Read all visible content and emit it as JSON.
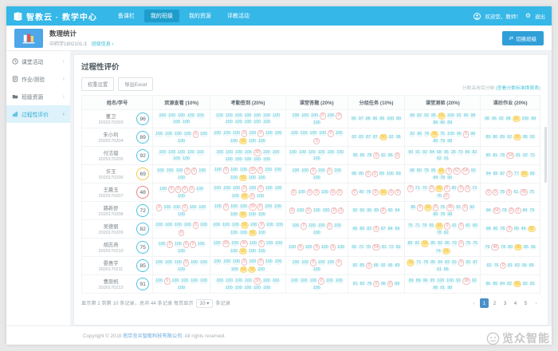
{
  "navbar": {
    "brand": "智教云 · 教学中心",
    "menu": [
      {
        "label": "备课栏",
        "active": false
      },
      {
        "label": "我的班级",
        "active": true
      },
      {
        "label": "我的资源",
        "active": false
      },
      {
        "label": "评教活动",
        "active": false
      }
    ],
    "welcome": "欢迎您，教师！",
    "logout": "退出"
  },
  "course": {
    "title": "数理统计",
    "class_name": "中药学1802101-3",
    "info_link": "班级信息 ›",
    "switch_button": "切换班级"
  },
  "sidebar": {
    "items": [
      {
        "label": "课堂活动",
        "icon": "clock-icon",
        "active": false
      },
      {
        "label": "作业/测验",
        "icon": "file-icon",
        "active": false
      },
      {
        "label": "班级资源",
        "icon": "folder-icon",
        "active": false
      },
      {
        "label": "过程性评价",
        "icon": "chart-icon",
        "active": true
      }
    ]
  },
  "main": {
    "title": "过程性评价",
    "weight_button": "权重设置",
    "export_button": "导出Excel",
    "note": "分数采用百分制",
    "note_link": "(查看分数标准换算表)"
  },
  "table": {
    "columns": [
      "姓名/学号",
      "资源查看 (10%)",
      "考勤签到 (20%)",
      "课堂答题 (20%)",
      "分组任务 (10%)",
      "课堂测验 (20%)",
      "课后作业 (20%)"
    ],
    "chip_colors": {
      "ok": "#56c8d9",
      "zero": "#e89494",
      "warn": "#e8b931"
    },
    "students": [
      {
        "name": "董卫",
        "id": "2020170203",
        "total": "96",
        "level": "good",
        "cells": [
          [
            "100",
            "100",
            "100",
            "100",
            "100",
            "100",
            "100"
          ],
          [
            "100",
            "100",
            "100",
            "100",
            "100",
            "100",
            "100",
            "100",
            "100",
            "100",
            "100",
            "100"
          ],
          [
            "100",
            "100",
            "100",
            "0r",
            "100",
            "0r",
            "100"
          ],
          [
            "96",
            "97",
            "98",
            "96",
            "89",
            "100",
            "89"
          ],
          [
            "98",
            "82",
            "92",
            "95",
            "56y",
            "100",
            "92",
            "96",
            "98",
            "86",
            "86",
            "89"
          ],
          [
            "98",
            "96",
            "92",
            "98",
            "56y",
            "100",
            "89"
          ]
        ]
      },
      {
        "name": "朱小利",
        "id": "2020170204",
        "total": "89",
        "level": "good",
        "cells": [
          [
            "100",
            "100",
            "100",
            "100",
            "0r",
            "100",
            "100"
          ],
          [
            "100",
            "100",
            "100",
            "0r",
            "100",
            "0r",
            "100",
            "100",
            "100",
            "56y",
            "100",
            "100"
          ],
          [
            "100",
            "100",
            "100",
            "100",
            "0r",
            "100",
            "0r"
          ],
          [
            "92",
            "82",
            "87",
            "87",
            "56y",
            "92",
            "96"
          ],
          [
            "92",
            "86",
            "78",
            "56y",
            "75",
            "100",
            "90",
            "0r",
            "98",
            "80",
            "79",
            "98"
          ],
          [
            "89",
            "80",
            "89",
            "92",
            "56y",
            "86",
            "92"
          ]
        ]
      },
      {
        "name": "付洁璇",
        "id": "2020170205",
        "total": "92",
        "level": "good",
        "cells": [
          [
            "100",
            "100",
            "100",
            "100",
            "100",
            "100",
            "100"
          ],
          [
            "100",
            "100",
            "100",
            "100",
            "30r",
            "100",
            "100",
            "100",
            "100",
            "100",
            "100",
            "100"
          ],
          [
            "100",
            "100",
            "100",
            "100",
            "100",
            "100",
            "100"
          ],
          [
            "96",
            "85",
            "78",
            "0r",
            "92",
            "86",
            "0r"
          ],
          [
            "90",
            "91",
            "82",
            "84",
            "68",
            "95",
            "28",
            "70",
            "86",
            "82",
            "92",
            "91"
          ],
          [
            "90",
            "81",
            "78",
            "54r",
            "81",
            "92",
            "72"
          ]
        ]
      },
      {
        "name": "许玉",
        "id": "2020170206",
        "total": "69",
        "level": "warn",
        "cells": [
          [
            "100",
            "100",
            "100",
            "0r",
            "0r",
            "100",
            "100"
          ],
          [
            "100",
            "0r",
            "100",
            "100",
            "30r",
            "0r",
            "100",
            "100",
            "100",
            "56y",
            "100",
            "100"
          ],
          [
            "100",
            "100",
            "0r",
            "100",
            "0r",
            "100",
            "100"
          ],
          [
            "98",
            "80",
            "0r",
            "0r",
            "89",
            "100",
            "89"
          ],
          [
            "98",
            "80",
            "78",
            "95",
            "56y",
            "0r",
            "52r",
            "54r",
            "92",
            "84",
            "78",
            "90"
          ],
          [
            "94",
            "85",
            "87",
            "0r",
            "77",
            "56y",
            "89"
          ]
        ]
      },
      {
        "name": "王晨玉",
        "id": "2020170207",
        "total": "48",
        "level": "bad",
        "cells": [
          [
            "100",
            "0r",
            "0r",
            "0r",
            "0r",
            "100",
            "100"
          ],
          [
            "100",
            "100",
            "100",
            "0r",
            "100",
            "0r",
            "100",
            "100",
            "100",
            "56y",
            "0r",
            "100"
          ],
          [
            "0r",
            "100",
            "0r",
            "0r",
            "100",
            "0r",
            "0r"
          ],
          [
            "0r",
            "80",
            "78",
            "0r",
            "56y",
            "0r",
            "0r"
          ],
          [
            "0r",
            "71",
            "70",
            "0r",
            "56y",
            "0r",
            "80",
            "0r",
            "0r",
            "72",
            "76",
            "0r"
          ],
          [
            "0r",
            "0r",
            "78",
            "0r",
            "61",
            "45r",
            "75"
          ]
        ]
      },
      {
        "name": "路新舒",
        "id": "2020170208",
        "total": "72",
        "level": "good",
        "cells": [
          [
            "0r",
            "100",
            "100",
            "0r",
            "100",
            "100",
            "100"
          ],
          [
            "100",
            "0r",
            "100",
            "100",
            "30r",
            "0r",
            "100",
            "100",
            "100",
            "56y",
            "100",
            "100"
          ],
          [
            "0r",
            "100",
            "0r",
            "100",
            "100",
            "0r",
            "0r"
          ],
          [
            "92",
            "90",
            "96",
            "89",
            "0r",
            "90",
            "94"
          ],
          [
            "86",
            "0r",
            "56y",
            "0r",
            "78",
            "45r",
            "92",
            "0r",
            "90",
            "80",
            "78",
            "98"
          ],
          [
            "84",
            "54r",
            "78",
            "0r",
            "0r",
            "84",
            "79"
          ]
        ]
      },
      {
        "name": "吴德丽",
        "id": "2020170209",
        "total": "82",
        "level": "good",
        "cells": [
          [
            "100",
            "100",
            "100",
            "100",
            "0r",
            "100",
            "0r"
          ],
          [
            "100",
            "100",
            "100",
            "56y",
            "100",
            "0r",
            "100",
            "100",
            "100",
            "100",
            "56y",
            "100"
          ],
          [
            "100",
            "0r",
            "100",
            "100",
            "0r",
            "100",
            "100"
          ],
          [
            "96",
            "80",
            "82",
            "0r",
            "87",
            "84",
            "89"
          ],
          [
            "75",
            "71",
            "78",
            "95",
            "56y",
            "0r",
            "92",
            "0r",
            "81",
            "80",
            "78",
            "82"
          ],
          [
            "98",
            "80",
            "78",
            "0r",
            "89",
            "46",
            "56y"
          ]
        ]
      },
      {
        "name": "胡志燕",
        "id": "2020170210",
        "total": "75",
        "level": "good",
        "cells": [
          [
            "100",
            "0r",
            "100",
            "0r",
            "0r",
            "100",
            "100"
          ],
          [
            "100",
            "30r",
            "100",
            "30r",
            "100",
            "0r",
            "100",
            "100",
            "100",
            "56y",
            "100",
            "100"
          ],
          [
            "100",
            "0r",
            "100",
            "0r",
            "100",
            "0r",
            "100"
          ],
          [
            "90",
            "72",
            "78",
            "54r",
            "81",
            "72",
            "82"
          ],
          [
            "88",
            "92",
            "56y",
            "85",
            "82",
            "86",
            "79",
            "0r",
            "75",
            "76",
            "74",
            "56y"
          ],
          [
            "79",
            "46r",
            "78",
            "80",
            "56y",
            "85",
            "96"
          ]
        ]
      },
      {
        "name": "晏惠宇",
        "id": "2020170211",
        "total": "85",
        "level": "good",
        "cells": [
          [
            "100",
            "100",
            "100",
            "0r",
            "100",
            "100",
            "100"
          ],
          [
            "100",
            "100",
            "100",
            "0r",
            "100",
            "0r",
            "100",
            "100",
            "100",
            "56y",
            "56y",
            "100"
          ],
          [
            "100",
            "100",
            "0r",
            "100",
            "100",
            "0r",
            "100"
          ],
          [
            "92",
            "85",
            "0r",
            "86",
            "92",
            "96",
            "89"
          ],
          [
            "56y",
            "71",
            "78",
            "85",
            "94",
            "83",
            "92",
            "0r",
            "93",
            "87",
            "91",
            "86"
          ],
          [
            "82",
            "76",
            "0r",
            "81",
            "83",
            "96",
            "89"
          ]
        ]
      },
      {
        "name": "曹辰帆",
        "id": "2020170212",
        "total": "91",
        "level": "good",
        "cells": [
          [
            "100",
            "0r",
            "100",
            "100",
            "100",
            "100",
            "100"
          ],
          [
            "100",
            "100",
            "100",
            "100",
            "30r",
            "100",
            "100",
            "100",
            "100",
            "100",
            "100",
            "100"
          ],
          [
            "100",
            "100",
            "100",
            "0r",
            "100",
            "100",
            "100"
          ],
          [
            "91",
            "82",
            "78",
            "0r",
            "96",
            "0r",
            "89"
          ],
          [
            "89",
            "89",
            "96",
            "95",
            "100",
            "100",
            "92",
            "38r",
            "92",
            "86",
            "91",
            "98"
          ],
          [
            "96",
            "85",
            "84",
            "82",
            "56y",
            "82",
            "82"
          ]
        ]
      }
    ]
  },
  "pager": {
    "summary_prefix": "显示第 1 到第 10 条记录，总共 44 条记录 每页显示",
    "page_size": "10 ▾",
    "summary_suffix": "条记录",
    "prev": "‹",
    "next": "›",
    "pages": [
      "1",
      "2",
      "3",
      "4",
      "5"
    ],
    "active_page": "1"
  },
  "footer": {
    "copyright_prefix": "Copyright © 2018 ",
    "company": "南京览众智能科技有限公司",
    "copyright_suffix": ". All rights reserved.",
    "watermark": "览众智能"
  }
}
